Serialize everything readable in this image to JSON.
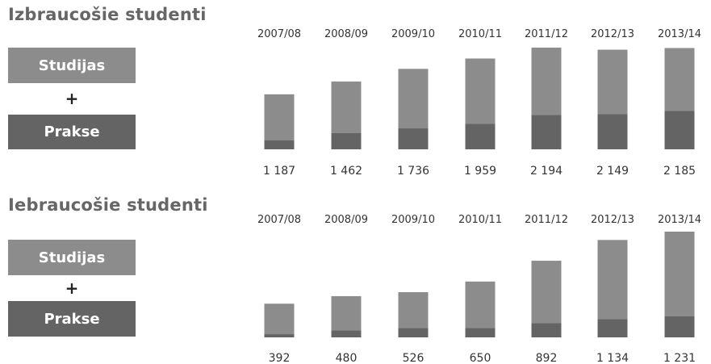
{
  "colors": {
    "studijas": "#8c8c8c",
    "prakse": "#646464",
    "title": "#666666",
    "labels": "#333333"
  },
  "chart_data": [
    {
      "type": "bar",
      "stacked": true,
      "title": "Izbraucošie studenti",
      "legend": {
        "placement": "left",
        "studijas_label": "Studijas",
        "plus": "+",
        "prakse_label": "Prakse"
      },
      "categories": [
        "2007/08",
        "2008/09",
        "2009/10",
        "2010/11",
        "2011/12",
        "2012/13",
        "2013/14"
      ],
      "totals": [
        "1 187",
        "1 462",
        "1 736",
        "1 959",
        "2 194",
        "2 149",
        "2 185"
      ],
      "total_values": [
        1187,
        1462,
        1736,
        1959,
        2194,
        2149,
        2185
      ],
      "series": [
        {
          "name": "Prakse",
          "values": [
            192,
            354,
            452,
            550,
            743,
            757,
            831
          ]
        },
        {
          "name": "Studijas",
          "values": [
            995,
            1108,
            1284,
            1409,
            1451,
            1392,
            1354
          ]
        }
      ],
      "ylim": [
        0,
        2194
      ],
      "grid": false
    },
    {
      "type": "bar",
      "stacked": true,
      "title": "Iebraucošie studenti",
      "legend": {
        "placement": "left",
        "studijas_label": "Studijas",
        "plus": "+",
        "prakse_label": "Prakse"
      },
      "categories": [
        "2007/08",
        "2008/09",
        "2009/10",
        "2010/11",
        "2011/12",
        "2012/13",
        "2013/14"
      ],
      "totals": [
        "392",
        "480",
        "526",
        "650",
        "892",
        "1 134",
        "1 231"
      ],
      "total_values": [
        392,
        480,
        526,
        650,
        892,
        1134,
        1231
      ],
      "series": [
        {
          "name": "Prakse",
          "values": [
            37,
            82,
            110,
            110,
            165,
            211,
            247
          ]
        },
        {
          "name": "Studijas",
          "values": [
            355,
            398,
            416,
            540,
            727,
            923,
            984
          ]
        }
      ],
      "ylim": [
        0,
        1231
      ],
      "grid": false
    }
  ]
}
